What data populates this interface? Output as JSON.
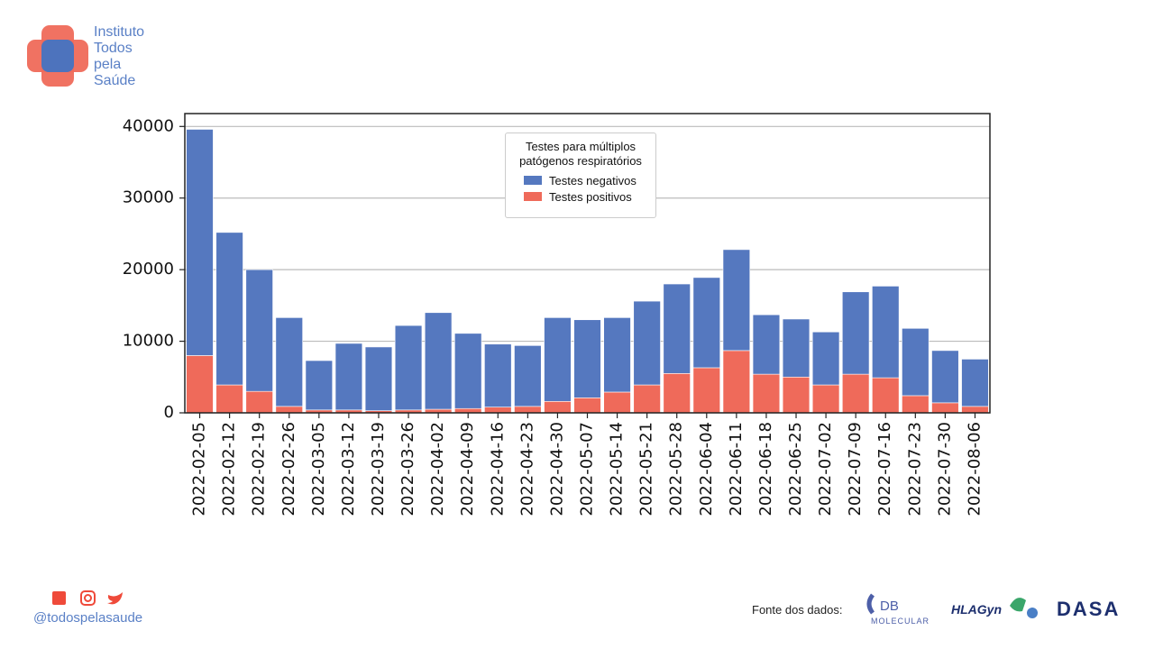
{
  "branding": {
    "logo_lines": [
      "Instituto",
      "Todos",
      "pela",
      "Saúde"
    ],
    "handle": "@todospelasaude",
    "source_label": "Fonte dos dados:",
    "partners": [
      "DB",
      "MOLECULAR",
      "HLAGyn",
      "DASA"
    ]
  },
  "chart_data": {
    "type": "stacked_bar",
    "legend_title": "Testes para múltiplos patógenos respiratórios",
    "categories": [
      "2022-02-05",
      "2022-02-12",
      "2022-02-19",
      "2022-02-26",
      "2022-03-05",
      "2022-03-12",
      "2022-03-19",
      "2022-03-26",
      "2022-04-02",
      "2022-04-09",
      "2022-04-16",
      "2022-04-23",
      "2022-04-30",
      "2022-05-07",
      "2022-05-14",
      "2022-05-21",
      "2022-05-28",
      "2022-06-04",
      "2022-06-11",
      "2022-06-18",
      "2022-06-25",
      "2022-07-02",
      "2022-07-09",
      "2022-07-16",
      "2022-07-23",
      "2022-07-30",
      "2022-08-06"
    ],
    "series": [
      {
        "name": "Testes positivos",
        "color": "#ef6a5a",
        "values": [
          8000,
          3900,
          3000,
          900,
          400,
          400,
          300,
          400,
          500,
          600,
          800,
          900,
          1600,
          2100,
          2900,
          3900,
          5500,
          6300,
          8700,
          5400,
          5000,
          3900,
          5400,
          4900,
          2400,
          1400,
          900
        ]
      },
      {
        "name": "Testes negativos",
        "color": "#5578bf",
        "values": [
          31600,
          21300,
          17000,
          12400,
          6900,
          9300,
          8900,
          11800,
          13500,
          10500,
          8800,
          8500,
          11700,
          10900,
          10400,
          11700,
          12500,
          12600,
          14100,
          8300,
          8100,
          7400,
          11500,
          12800,
          9400,
          7300,
          6600
        ]
      }
    ],
    "legend_order": [
      1,
      0
    ],
    "ylim": [
      0,
      41800
    ],
    "yticks": [
      0,
      10000,
      20000,
      30000,
      40000
    ],
    "grid": true
  }
}
